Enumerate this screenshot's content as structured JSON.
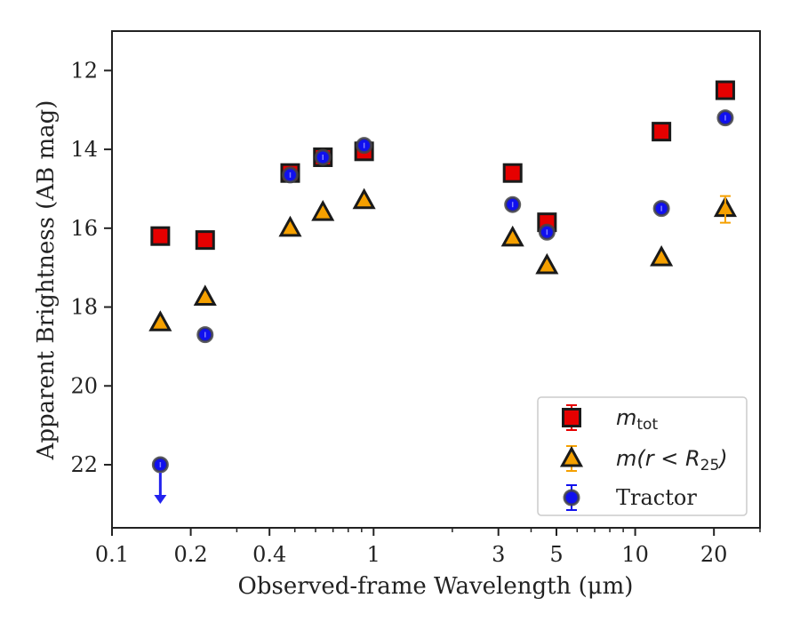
{
  "chart_data": {
    "type": "scatter",
    "xlabel": "Observed-frame Wavelength (μm)",
    "ylabel": "Apparent Brightness (AB mag)",
    "x_scale": "log",
    "y_inverted": true,
    "xlim": [
      0.1,
      30
    ],
    "ylim": [
      23.6,
      11.0
    ],
    "x_ticks": [
      0.1,
      0.2,
      0.4,
      1,
      3,
      5,
      10,
      20
    ],
    "x_tick_labels": [
      "0.1",
      "0.2",
      "0.4",
      "1",
      "3",
      "5",
      "10",
      "20"
    ],
    "y_ticks": [
      12,
      14,
      16,
      18,
      20,
      22
    ],
    "y_tick_labels": [
      "12",
      "14",
      "16",
      "18",
      "20",
      "22"
    ],
    "grid": false,
    "legend_position": "lower-right",
    "series": [
      {
        "name": "m_tot",
        "marker": "square",
        "color": "#e60000",
        "x": [
          0.153,
          0.227,
          0.48,
          0.64,
          0.92,
          3.4,
          4.6,
          12.6,
          22.1
        ],
        "y": [
          16.2,
          16.3,
          14.6,
          14.2,
          14.05,
          14.6,
          15.85,
          13.55,
          12.5
        ]
      },
      {
        "name": "m(r < R25)",
        "marker": "triangle",
        "color": "#f5a000",
        "x": [
          0.153,
          0.227,
          0.48,
          0.64,
          0.92,
          3.4,
          4.6,
          12.6,
          22.1
        ],
        "y": [
          18.4,
          17.75,
          16.0,
          15.6,
          15.3,
          16.25,
          16.95,
          16.75,
          15.5
        ]
      },
      {
        "name": "Tractor",
        "marker": "circle",
        "color": "#1010ee",
        "x": [
          0.153,
          0.227,
          0.48,
          0.64,
          0.92,
          3.4,
          4.6,
          12.6,
          22.1
        ],
        "y": [
          22.0,
          18.7,
          14.65,
          14.2,
          13.9,
          15.4,
          16.1,
          15.5,
          13.2
        ],
        "upper_limit_index": 0
      }
    ]
  }
}
